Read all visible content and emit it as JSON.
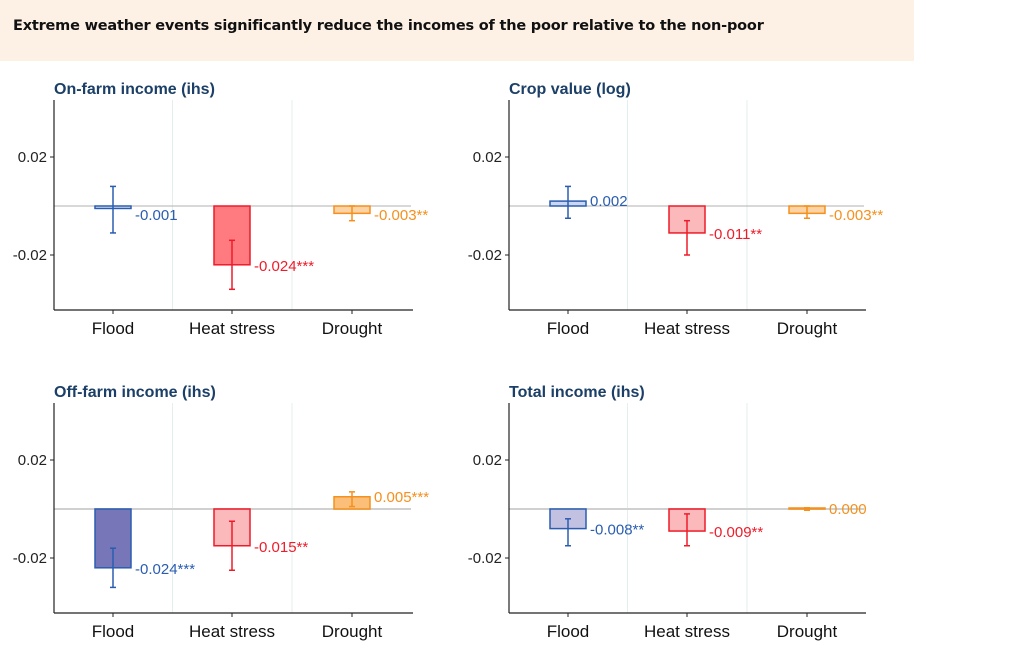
{
  "banner": {
    "title": "Extreme weather events significantly reduce the incomes of the poor relative to the non-poor"
  },
  "colors": {
    "banner_bg": "#fdf0e4",
    "title_color": "#1b3f66",
    "flood_stroke": "#2a5db0",
    "heat_stroke": "#ee1c2a",
    "drought_stroke": "#f5901e"
  },
  "chart_data": [
    {
      "type": "bar",
      "title": "On-farm income (ihs)",
      "categories": [
        "Flood",
        "Heat stress",
        "Drought"
      ],
      "ylim": [
        -0.042,
        0.042
      ],
      "yticks": [
        0.02,
        -0.02
      ],
      "ytick_labels": [
        "0.02",
        "-0.02"
      ],
      "grid": "vertical separators between categories",
      "series": [
        {
          "name": "Flood",
          "value": -0.001,
          "ci": [
            -0.011,
            0.008
          ],
          "label": "-0.001",
          "fill": "#a9bde6",
          "fill_opacity": 0.35,
          "stroke": "#2a5db0"
        },
        {
          "name": "Heat stress",
          "value": -0.024,
          "ci": [
            -0.034,
            -0.014
          ],
          "label": "-0.024***",
          "fill": "#ff7b80",
          "fill_opacity": 1,
          "stroke": "#ee1c2a"
        },
        {
          "name": "Drought",
          "value": -0.003,
          "ci": [
            -0.006,
            0.0
          ],
          "label": "-0.003**",
          "fill": "#fcd3a5",
          "fill_opacity": 1,
          "stroke": "#f5901e"
        }
      ]
    },
    {
      "type": "bar",
      "title": "Crop value (log)",
      "categories": [
        "Flood",
        "Heat stress",
        "Drought"
      ],
      "ylim": [
        -0.042,
        0.042
      ],
      "yticks": [
        0.02,
        -0.02
      ],
      "ytick_labels": [
        "0.02",
        "-0.02"
      ],
      "grid": "vertical separators between categories",
      "series": [
        {
          "name": "Flood",
          "value": 0.002,
          "ci": [
            -0.005,
            0.008
          ],
          "label": "0.002",
          "fill": "#a9bde6",
          "fill_opacity": 0.6,
          "stroke": "#2a5db0"
        },
        {
          "name": "Heat stress",
          "value": -0.011,
          "ci": [
            -0.02,
            -0.006
          ],
          "label": "-0.011**",
          "fill": "#fbb9bc",
          "fill_opacity": 1,
          "stroke": "#ee1c2a"
        },
        {
          "name": "Drought",
          "value": -0.003,
          "ci": [
            -0.005,
            0.0
          ],
          "label": "-0.003**",
          "fill": "#fcd3a5",
          "fill_opacity": 1,
          "stroke": "#f5901e"
        }
      ]
    },
    {
      "type": "bar",
      "title": "Off-farm income (ihs)",
      "categories": [
        "Flood",
        "Heat stress",
        "Drought"
      ],
      "ylim": [
        -0.042,
        0.042
      ],
      "yticks": [
        0.02,
        -0.02
      ],
      "ytick_labels": [
        "0.02",
        "-0.02"
      ],
      "grid": "vertical separators between categories",
      "series": [
        {
          "name": "Flood",
          "value": -0.024,
          "ci": [
            -0.032,
            -0.016
          ],
          "label": "-0.024***",
          "fill": "#7676b8",
          "fill_opacity": 1,
          "stroke": "#2a5db0"
        },
        {
          "name": "Heat stress",
          "value": -0.015,
          "ci": [
            -0.025,
            -0.005
          ],
          "label": "-0.015**",
          "fill": "#fbb9bc",
          "fill_opacity": 1,
          "stroke": "#ee1c2a"
        },
        {
          "name": "Drought",
          "value": 0.005,
          "ci": [
            0.001,
            0.007
          ],
          "label": "0.005***",
          "fill": "#fbbf7a",
          "fill_opacity": 1,
          "stroke": "#f5901e"
        }
      ]
    },
    {
      "type": "bar",
      "title": "Total income (ihs)",
      "categories": [
        "Flood",
        "Heat stress",
        "Drought"
      ],
      "ylim": [
        -0.042,
        0.042
      ],
      "yticks": [
        0.02,
        -0.02
      ],
      "ytick_labels": [
        "0.02",
        "-0.02"
      ],
      "grid": "vertical separators between categories",
      "series": [
        {
          "name": "Flood",
          "value": -0.008,
          "ci": [
            -0.015,
            -0.004
          ],
          "label": "-0.008**",
          "fill": "#c3c1e2",
          "fill_opacity": 1,
          "stroke": "#2a5db0"
        },
        {
          "name": "Heat stress",
          "value": -0.009,
          "ci": [
            -0.015,
            -0.002
          ],
          "label": "-0.009**",
          "fill": "#fbb9bc",
          "fill_opacity": 1,
          "stroke": "#ee1c2a"
        },
        {
          "name": "Drought",
          "value": 0.0,
          "ci": [
            -0.0005,
            0.0005
          ],
          "label": "0.000",
          "fill": "#fbbf7a",
          "fill_opacity": 1,
          "stroke": "#f5901e"
        }
      ]
    }
  ]
}
